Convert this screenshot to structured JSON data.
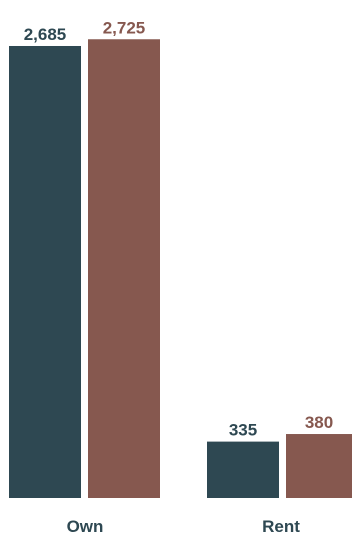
{
  "chart_data": {
    "type": "bar",
    "title": "",
    "xlabel": "",
    "ylabel": "",
    "categories": [
      "Own",
      "Rent"
    ],
    "series": [
      {
        "color": "#2e4852",
        "values": [
          2685,
          2725
        ]
      },
      {
        "color": "#86584f",
        "values": [
          335,
          380
        ]
      }
    ],
    "value_labels": [
      [
        "2,685",
        "2,725"
      ],
      [
        "335",
        "380"
      ]
    ],
    "bar_order": "within each category the first bar is dark slate, second is brown",
    "ylim": [
      0,
      2780
    ],
    "grid": false,
    "legend": "none"
  }
}
